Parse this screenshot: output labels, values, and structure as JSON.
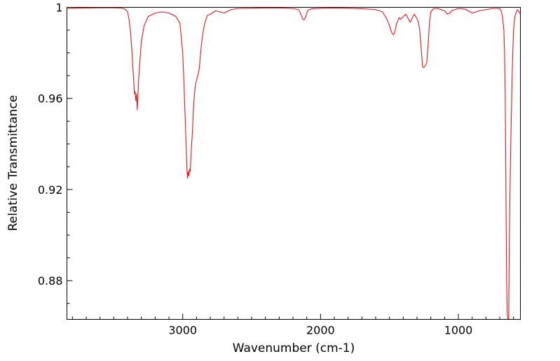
{
  "chart_data": {
    "type": "line",
    "title": "",
    "xlabel": "Wavenumber (cm-1)",
    "ylabel": "Relative Transmittance",
    "xlim": [
      3840,
      550
    ],
    "ylim": [
      0.863,
      1.0
    ],
    "x_reversed": true,
    "x_ticks": [
      3000,
      2000,
      1000
    ],
    "x_tick_labels": [
      "3000",
      "2000",
      "1000"
    ],
    "y_ticks": [
      0.88,
      0.92,
      0.96,
      1.0
    ],
    "y_tick_labels": [
      "0.88",
      "0.92",
      "0.96",
      "1"
    ],
    "grid": false,
    "line_color": "#e8141a",
    "series": [
      {
        "x": [
          3840,
          3800,
          3700,
          3600,
          3500,
          3450,
          3420,
          3400,
          3390,
          3380,
          3370,
          3360,
          3350,
          3345,
          3340,
          3335,
          3330,
          3320,
          3310,
          3300,
          3280,
          3250,
          3200,
          3150,
          3100,
          3050,
          3020,
          3000,
          2990,
          2980,
          2970,
          2965,
          2960,
          2955,
          2950,
          2945,
          2940,
          2930,
          2920,
          2910,
          2900,
          2890,
          2880,
          2870,
          2860,
          2850,
          2840,
          2830,
          2820,
          2800,
          2760,
          2700,
          2650,
          2600,
          2500,
          2400,
          2300,
          2200,
          2160,
          2150,
          2140,
          2130,
          2120,
          2110,
          2100,
          2090,
          2060,
          2000,
          1900,
          1800,
          1700,
          1600,
          1550,
          1520,
          1500,
          1490,
          1480,
          1470,
          1460,
          1450,
          1430,
          1420,
          1410,
          1400,
          1390,
          1380,
          1370,
          1360,
          1350,
          1340,
          1330,
          1320,
          1300,
          1290,
          1280,
          1270,
          1260,
          1250,
          1240,
          1230,
          1220,
          1210,
          1200,
          1180,
          1150,
          1100,
          1080,
          1060,
          1050,
          1000,
          950,
          900,
          870,
          850,
          800,
          750,
          720,
          700,
          690,
          680,
          670,
          665,
          660,
          655,
          650,
          645,
          640,
          635,
          630,
          620,
          610,
          600,
          590,
          580,
          570,
          560,
          550
        ],
        "y": [
          0.9995,
          0.9996,
          0.9997,
          0.9998,
          0.9998,
          0.9997,
          0.9993,
          0.998,
          0.995,
          0.99,
          0.982,
          0.972,
          0.962,
          0.963,
          0.959,
          0.962,
          0.955,
          0.968,
          0.977,
          0.985,
          0.992,
          0.996,
          0.9975,
          0.998,
          0.9975,
          0.996,
          0.993,
          0.98,
          0.965,
          0.948,
          0.93,
          0.925,
          0.928,
          0.926,
          0.929,
          0.928,
          0.935,
          0.945,
          0.958,
          0.965,
          0.968,
          0.97,
          0.973,
          0.98,
          0.986,
          0.99,
          0.993,
          0.995,
          0.9965,
          0.997,
          0.9985,
          0.9975,
          0.999,
          0.9995,
          0.9996,
          0.9997,
          0.9997,
          0.9995,
          0.999,
          0.998,
          0.9965,
          0.995,
          0.9945,
          0.9955,
          0.9975,
          0.9988,
          0.9994,
          0.9996,
          0.9997,
          0.9996,
          0.9994,
          0.999,
          0.998,
          0.995,
          0.992,
          0.99,
          0.9885,
          0.988,
          0.9895,
          0.9925,
          0.9955,
          0.9948,
          0.9952,
          0.996,
          0.9965,
          0.997,
          0.9958,
          0.9945,
          0.9935,
          0.9945,
          0.996,
          0.997,
          0.995,
          0.9935,
          0.99,
          0.982,
          0.974,
          0.9735,
          0.9745,
          0.9755,
          0.983,
          0.993,
          0.998,
          0.9995,
          0.9995,
          0.9985,
          0.997,
          0.9975,
          0.9985,
          0.9995,
          0.9992,
          0.9975,
          0.998,
          0.9985,
          0.999,
          0.9995,
          0.9995,
          0.9994,
          0.9985,
          0.996,
          0.99,
          0.98,
          0.96,
          0.92,
          0.88,
          0.865,
          0.862,
          0.862,
          0.9,
          0.94,
          0.97,
          0.99,
          0.996,
          0.998,
          0.999,
          0.998,
          0.997
        ]
      }
    ]
  }
}
